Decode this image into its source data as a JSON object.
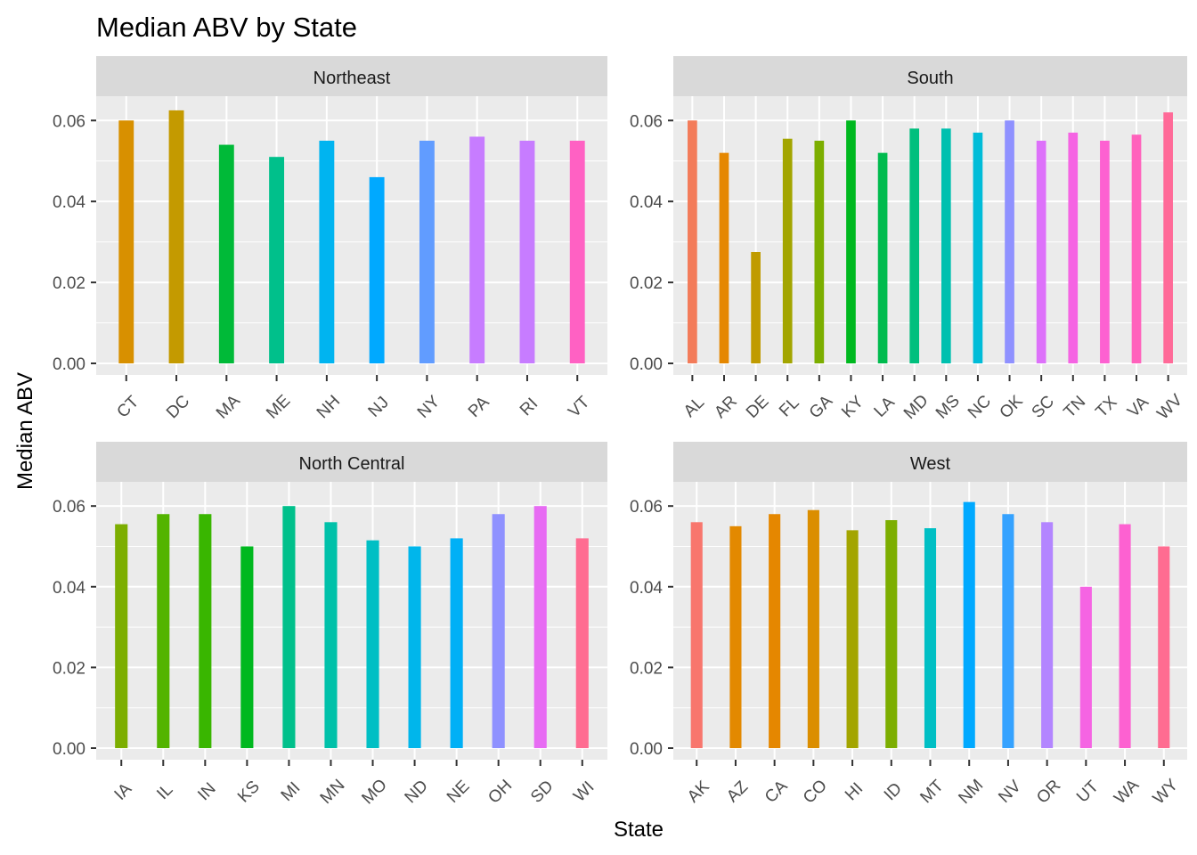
{
  "chart_data": {
    "type": "bar",
    "title": "Median ABV by State",
    "xlabel": "State",
    "ylabel": "Median ABV",
    "ylim": [
      0,
      0.066
    ],
    "y_ticks": [
      "0.00",
      "0.02",
      "0.04",
      "0.06"
    ],
    "grid": true,
    "legend": "none",
    "facets": [
      {
        "name": "Northeast",
        "categories": [
          "CT",
          "DC",
          "MA",
          "ME",
          "NH",
          "NJ",
          "NY",
          "PA",
          "RI",
          "VT"
        ],
        "values": [
          0.06,
          0.0625,
          0.054,
          0.051,
          0.055,
          0.046,
          0.055,
          0.056,
          0.055,
          0.055
        ],
        "colors": [
          "#d89000",
          "#c49a00",
          "#00ba38",
          "#00c08b",
          "#00b4f0",
          "#00a9ff",
          "#619cff",
          "#c77cff",
          "#c77cff",
          "#ff61c3"
        ]
      },
      {
        "name": "South",
        "categories": [
          "AL",
          "AR",
          "DE",
          "FL",
          "GA",
          "KY",
          "LA",
          "MD",
          "MS",
          "NC",
          "OK",
          "SC",
          "TN",
          "TX",
          "VA",
          "WV"
        ],
        "values": [
          0.06,
          0.052,
          0.0275,
          0.0555,
          0.055,
          0.06,
          0.052,
          0.058,
          0.058,
          0.057,
          0.06,
          0.055,
          0.057,
          0.055,
          0.0565,
          0.062
        ],
        "colors": [
          "#f37b59",
          "#e58700",
          "#c09b00",
          "#a3a500",
          "#7cae00",
          "#00b81f",
          "#00bb4e",
          "#00bf7d",
          "#00c0af",
          "#00bcd8",
          "#8f91ff",
          "#dd71fa",
          "#f564e3",
          "#fd61d1",
          "#ff62bc",
          "#ff6a98"
        ]
      },
      {
        "name": "North Central",
        "categories": [
          "IA",
          "IL",
          "IN",
          "KS",
          "MI",
          "MN",
          "MO",
          "ND",
          "NE",
          "OH",
          "SD",
          "WI"
        ],
        "values": [
          0.0555,
          0.058,
          0.058,
          0.05,
          0.06,
          0.056,
          0.0515,
          0.05,
          0.052,
          0.058,
          0.06,
          0.052
        ],
        "colors": [
          "#7cae00",
          "#53b400",
          "#39b600",
          "#00b81f",
          "#00c08b",
          "#00c1a9",
          "#00bfc4",
          "#00b6eb",
          "#00b0f6",
          "#8f91ff",
          "#e76bf3",
          "#ff6c91"
        ]
      },
      {
        "name": "West",
        "categories": [
          "AK",
          "AZ",
          "CA",
          "CO",
          "HI",
          "ID",
          "MT",
          "NM",
          "NV",
          "OR",
          "UT",
          "WA",
          "WY"
        ],
        "values": [
          0.056,
          0.055,
          0.058,
          0.059,
          0.054,
          0.0565,
          0.0545,
          0.061,
          0.058,
          0.056,
          0.04,
          0.0555,
          0.05
        ],
        "colors": [
          "#f8766d",
          "#e38900",
          "#e58700",
          "#db8e00",
          "#a3a500",
          "#7cae00",
          "#00bfc4",
          "#00a9ff",
          "#35a2ff",
          "#b385ff",
          "#f564e3",
          "#fd61d1",
          "#ff6c91"
        ]
      }
    ]
  }
}
